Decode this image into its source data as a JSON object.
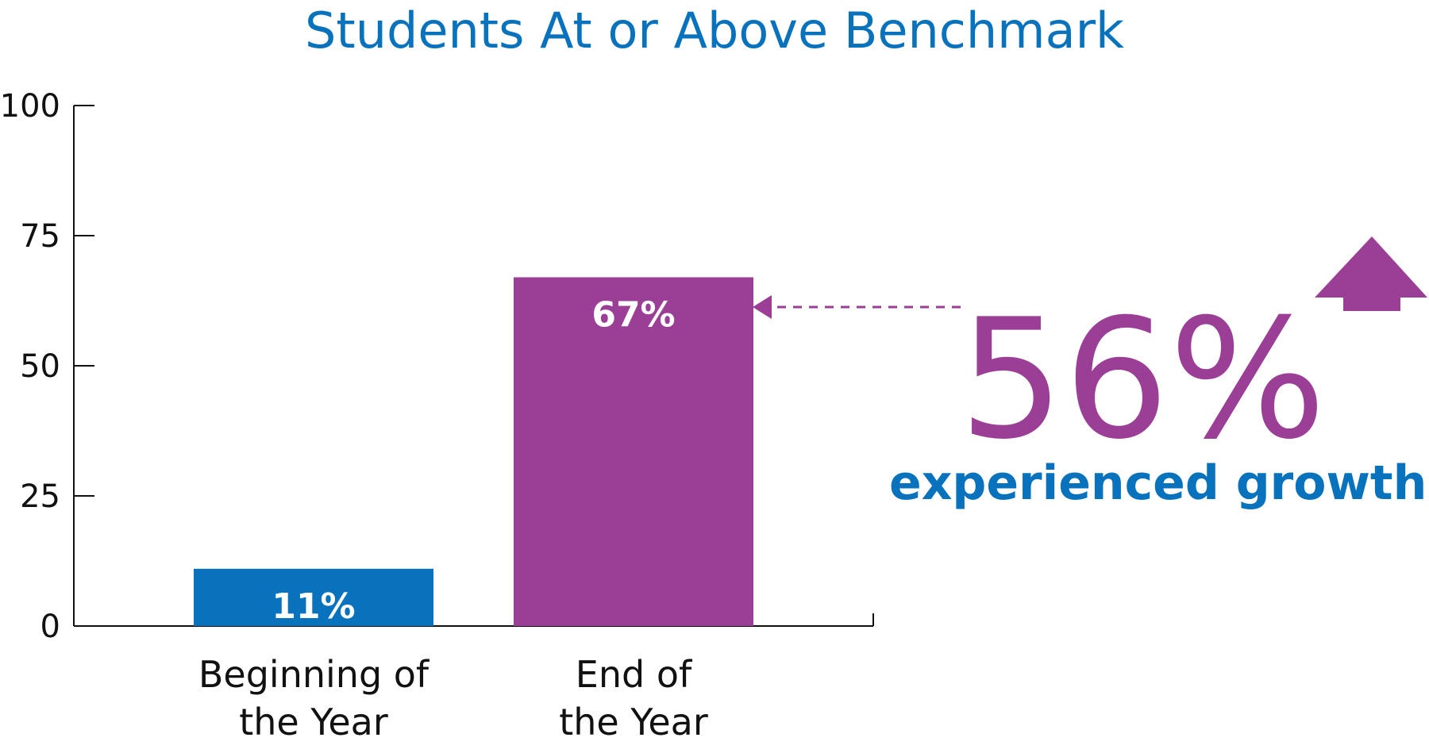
{
  "colors": {
    "title": "#0872bd",
    "axis": "#111111",
    "accent": "#9b3f96"
  },
  "chart_data": {
    "type": "bar",
    "title": "Students At or Above Benchmark",
    "categories": [
      [
        "Beginning of",
        "the Year"
      ],
      [
        "End of",
        "the Year"
      ]
    ],
    "values": [
      11,
      67
    ],
    "data_labels": [
      "11%",
      "67%"
    ],
    "bar_colors": [
      "#0872bd",
      "#9b3f96"
    ],
    "ylim": [
      0,
      100
    ],
    "yticks": [
      0,
      25,
      50,
      75,
      100
    ],
    "grid": false,
    "xlabel": "",
    "ylabel": ""
  },
  "callout": {
    "value": "56%",
    "text": "experienced growth"
  }
}
